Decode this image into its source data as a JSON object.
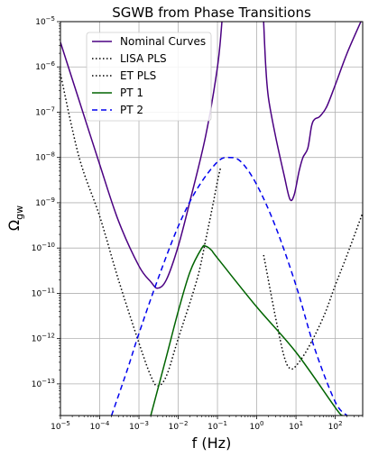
{
  "chart_data": {
    "type": "line",
    "title": "SGWB from Phase Transitions",
    "xlabel": "f (Hz)",
    "ylabel_base": "Ω",
    "ylabel_sub": "gw",
    "x_scale": "log",
    "y_scale": "log",
    "xlim": [
      1e-05,
      500
    ],
    "ylim": [
      2e-14,
      1e-05
    ],
    "grid": true,
    "legend_position": "upper-left",
    "x_ticks": [
      {
        "value": 1e-05,
        "base": "10",
        "exp": "−5"
      },
      {
        "value": 0.0001,
        "base": "10",
        "exp": "−4"
      },
      {
        "value": 0.001,
        "base": "10",
        "exp": "−3"
      },
      {
        "value": 0.01,
        "base": "10",
        "exp": "−2"
      },
      {
        "value": 0.1,
        "base": "10",
        "exp": "−1"
      },
      {
        "value": 1,
        "base": "10",
        "exp": "0"
      },
      {
        "value": 10,
        "base": "10",
        "exp": "1"
      },
      {
        "value": 100,
        "base": "10",
        "exp": "2"
      }
    ],
    "y_ticks": [
      {
        "value": 1e-13,
        "base": "10",
        "exp": "−13"
      },
      {
        "value": 1e-12,
        "base": "10",
        "exp": "−12"
      },
      {
        "value": 1e-11,
        "base": "10",
        "exp": "−11"
      },
      {
        "value": 1e-10,
        "base": "10",
        "exp": "−10"
      },
      {
        "value": 1e-09,
        "base": "10",
        "exp": "−9"
      },
      {
        "value": 1e-08,
        "base": "10",
        "exp": "−8"
      },
      {
        "value": 1e-07,
        "base": "10",
        "exp": "−7"
      },
      {
        "value": 1e-06,
        "base": "10",
        "exp": "−6"
      },
      {
        "value": 1e-05,
        "base": "10",
        "exp": "−5"
      }
    ],
    "series": [
      {
        "name": "Nominal Curves",
        "color": "#4b0082",
        "dash": "solid",
        "segments": [
          [
            [
              1e-05,
              3.5e-06
            ],
            [
              3e-05,
              1.8e-07
            ],
            [
              0.0001,
              7e-09
            ],
            [
              0.0003,
              4e-10
            ],
            [
              0.001,
              4e-11
            ],
            [
              0.002,
              1.8e-11
            ],
            [
              0.003,
              1.3e-11
            ],
            [
              0.005,
              2e-11
            ],
            [
              0.01,
              1.1e-10
            ],
            [
              0.02,
              1.1e-09
            ],
            [
              0.05,
              3e-08
            ],
            [
              0.1,
              1e-06
            ],
            [
              0.13,
              1e-05
            ]
          ],
          [
            [
              1.5,
              1e-05
            ],
            [
              1.7,
              1e-06
            ],
            [
              2.0,
              2e-07
            ],
            [
              3,
              3e-08
            ],
            [
              5,
              4e-09
            ],
            [
              7,
              1.2e-09
            ],
            [
              9,
              1.5e-09
            ],
            [
              12,
              5e-09
            ],
            [
              15,
              1e-08
            ],
            [
              20,
              1.6e-08
            ],
            [
              25,
              5e-08
            ],
            [
              30,
              7e-08
            ],
            [
              40,
              8e-08
            ],
            [
              60,
              1.3e-07
            ],
            [
              100,
              4e-07
            ],
            [
              200,
              2e-06
            ],
            [
              450,
              1e-05
            ]
          ]
        ]
      },
      {
        "name": "LISA PLS",
        "color": "#000000",
        "dash": "dotted",
        "segments": [
          [
            [
              1e-05,
              7e-07
            ],
            [
              3e-05,
              1e-08
            ],
            [
              0.0001,
              5e-10
            ],
            [
              0.0003,
              2e-11
            ],
            [
              0.001,
              8e-13
            ],
            [
              0.002,
              1.5e-13
            ],
            [
              0.003,
              9e-14
            ],
            [
              0.005,
              1.5e-13
            ],
            [
              0.01,
              1e-12
            ],
            [
              0.03,
              2e-11
            ],
            [
              0.05,
              1.5e-10
            ],
            [
              0.08,
              1.1e-09
            ],
            [
              0.1,
              3e-09
            ],
            [
              0.12,
              6e-09
            ]
          ]
        ]
      },
      {
        "name": "ET PLS",
        "color": "#000000",
        "dash": "dotted",
        "segments": [
          [
            [
              1.5,
              7e-11
            ],
            [
              3,
              3e-12
            ],
            [
              5,
              4e-13
            ],
            [
              7,
              2.2e-13
            ],
            [
              10,
              2.5e-13
            ],
            [
              20,
              6e-13
            ],
            [
              50,
              3e-12
            ],
            [
              100,
              1.5e-11
            ],
            [
              200,
              7e-11
            ],
            [
              500,
              6e-10
            ]
          ]
        ]
      },
      {
        "name": "PT 1",
        "color": "#006400",
        "dash": "solid",
        "segments": [
          [
            [
              0.002,
              2e-14
            ],
            [
              0.005,
              4e-13
            ],
            [
              0.01,
              4e-12
            ],
            [
              0.02,
              3e-11
            ],
            [
              0.04,
              1e-10
            ],
            [
              0.05,
              1.1e-10
            ],
            [
              0.07,
              9e-11
            ],
            [
              0.1,
              6e-11
            ],
            [
              1,
              5e-12
            ],
            [
              10,
              5e-13
            ],
            [
              100,
              3e-14
            ],
            [
              150,
              2e-14
            ]
          ]
        ]
      },
      {
        "name": "PT 2",
        "color": "#0000ee",
        "dash": "dashed",
        "segments": [
          [
            [
              0.0002,
              2e-14
            ],
            [
              0.0005,
              2e-13
            ],
            [
              0.001,
              1.3e-12
            ],
            [
              0.003,
              2e-11
            ],
            [
              0.01,
              3e-10
            ],
            [
              0.03,
              2e-09
            ],
            [
              0.1,
              8e-09
            ],
            [
              0.2,
              1e-08
            ],
            [
              0.4,
              8e-09
            ],
            [
              1,
              2.5e-09
            ],
            [
              3,
              3e-10
            ],
            [
              10,
              1.5e-11
            ],
            [
              30,
              6e-13
            ],
            [
              100,
              4e-14
            ],
            [
              200,
              2e-14
            ]
          ]
        ]
      }
    ]
  }
}
